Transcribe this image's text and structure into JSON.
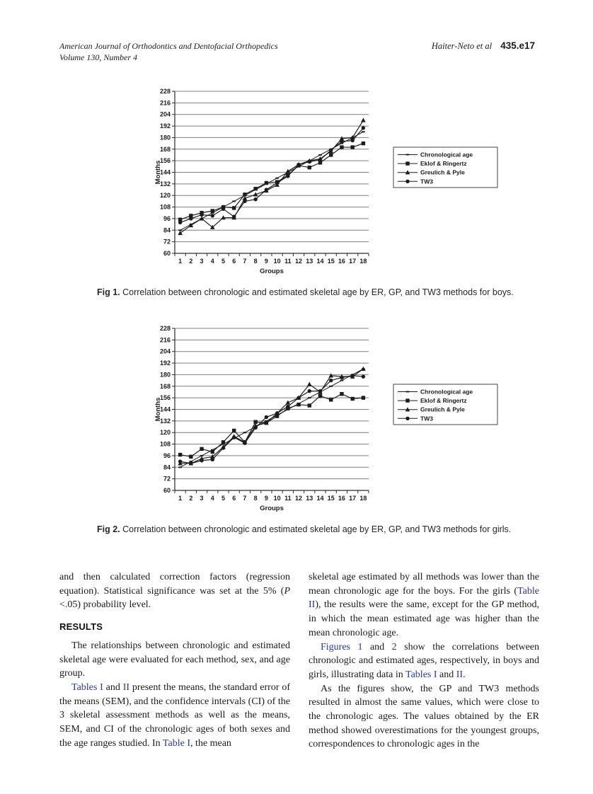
{
  "header": {
    "journal_line1": "American Journal of Orthodontics and Dentofacial Orthopedics",
    "journal_line2": "Volume 130, Number 4",
    "authors": "Haiter-Neto et al",
    "page_number": "435.e17"
  },
  "figures": [
    {
      "caption_label": "Fig 1.",
      "caption_text": " Correlation between chronologic and estimated skeletal age by ER, GP, and TW3 methods for boys."
    },
    {
      "caption_label": "Fig 2.",
      "caption_text": " Correlation between chronologic and estimated skeletal age by ER, GP, and TW3 methods for girls."
    }
  ],
  "colors": {
    "link": "#2936a5",
    "line": "#1c1c1c",
    "grid": "#7f7f7f",
    "axis": "#2a2a2a"
  },
  "chart_data": [
    {
      "type": "line",
      "title": "",
      "xlabel": "Groups",
      "ylabel": "Months",
      "x": [
        1,
        2,
        3,
        4,
        5,
        6,
        7,
        8,
        9,
        10,
        11,
        12,
        13,
        14,
        15,
        16,
        17,
        18
      ],
      "ylim": [
        60,
        228
      ],
      "ytick_step": 12,
      "grid": "horizontal",
      "legend_position": "right",
      "series": [
        {
          "name": "Chronological age",
          "marker": "dash",
          "values": [
            84,
            90,
            96,
            102,
            108,
            114,
            120,
            126,
            132,
            138,
            144,
            150,
            156,
            162,
            168,
            174,
            180,
            186
          ]
        },
        {
          "name": "Eklof & Ringertz",
          "marker": "square",
          "values": [
            95,
            99,
            102,
            104,
            108,
            107,
            121,
            127,
            133,
            134,
            141,
            151,
            149,
            154,
            162,
            170,
            170,
            174
          ]
        },
        {
          "name": "Greulich & Pyle",
          "marker": "triangle",
          "values": [
            81,
            89,
            96,
            87,
            97,
            97,
            117,
            121,
            125,
            131,
            145,
            152,
            156,
            158,
            166,
            179,
            180,
            198
          ]
        },
        {
          "name": "TW3",
          "marker": "circle",
          "values": [
            92,
            96,
            100,
            99,
            106,
            98,
            114,
            116,
            126,
            133,
            140,
            152,
            155,
            157,
            167,
            176,
            177,
            190
          ]
        }
      ]
    },
    {
      "type": "line",
      "title": "",
      "xlabel": "Groups",
      "ylabel": "Months",
      "x": [
        1,
        2,
        3,
        4,
        5,
        6,
        7,
        8,
        9,
        10,
        11,
        12,
        13,
        14,
        15,
        16,
        17,
        18
      ],
      "ylim": [
        60,
        228
      ],
      "ytick_step": 12,
      "grid": "horizontal",
      "legend_position": "right",
      "series": [
        {
          "name": "Chronological age",
          "marker": "dash",
          "values": [
            84,
            90,
            96,
            102,
            108,
            114,
            120,
            126,
            132,
            138,
            144,
            150,
            156,
            162,
            168,
            174,
            180,
            186
          ]
        },
        {
          "name": "Eklof & Ringertz",
          "marker": "square",
          "values": [
            97,
            95,
            103,
            100,
            110,
            122,
            110,
            131,
            130,
            137,
            145,
            149,
            148,
            158,
            154,
            160,
            155,
            156
          ]
        },
        {
          "name": "Greulich & Pyle",
          "marker": "triangle",
          "values": [
            88,
            88,
            93,
            95,
            105,
            116,
            110,
            127,
            130,
            140,
            151,
            156,
            170,
            162,
            179,
            178,
            178,
            186
          ]
        },
        {
          "name": "TW3",
          "marker": "circle",
          "values": [
            90,
            88,
            91,
            92,
            104,
            115,
            109,
            125,
            136,
            140,
            147,
            156,
            163,
            163,
            174,
            177,
            179,
            178
          ]
        }
      ]
    }
  ],
  "body": {
    "left_column": [
      {
        "kind": "paragraph",
        "indent": false,
        "segments": [
          {
            "text": "and then calculated correction factors (regression equation). Statistical significance was set at the 5% ("
          },
          {
            "text": "P",
            "style": "italic"
          },
          {
            "text": " <.05) probability level."
          }
        ]
      },
      {
        "kind": "heading",
        "text": "RESULTS"
      },
      {
        "kind": "paragraph",
        "indent": true,
        "segments": [
          {
            "text": "The relationships between chronologic and estimated skeletal age were evaluated for each method, sex, and age group."
          }
        ]
      },
      {
        "kind": "paragraph",
        "indent": true,
        "segments": [
          {
            "text": "Tables I",
            "style": "link"
          },
          {
            "text": " and "
          },
          {
            "text": "II",
            "style": "link"
          },
          {
            "text": " present the means, the standard error of the means (SEM), and the confidence intervals (CI) of the 3 skeletal assessment methods as well as the means, SEM, and CI of the chronologic ages of both sexes and the age ranges studied. In "
          },
          {
            "text": "Table I",
            "style": "link"
          },
          {
            "text": ", the mean"
          }
        ]
      }
    ],
    "right_column": [
      {
        "kind": "paragraph",
        "indent": false,
        "segments": [
          {
            "text": "skeletal age estimated by all methods was lower than the mean chronologic age for the boys. For the girls ("
          },
          {
            "text": "Table II",
            "style": "link"
          },
          {
            "text": "), the results were the same, except for the GP method, in which the mean estimated age was higher than the mean chronologic age."
          }
        ]
      },
      {
        "kind": "paragraph",
        "indent": true,
        "segments": [
          {
            "text": "Figures 1",
            "style": "link"
          },
          {
            "text": " and "
          },
          {
            "text": "2",
            "style": "link"
          },
          {
            "text": " show the correlations between chronologic and estimated ages, respectively, in boys and girls, illustrating data in "
          },
          {
            "text": "Tables I",
            "style": "link"
          },
          {
            "text": " and "
          },
          {
            "text": "II",
            "style": "link"
          },
          {
            "text": "."
          }
        ]
      },
      {
        "kind": "paragraph",
        "indent": true,
        "segments": [
          {
            "text": "As the figures show, the GP and TW3 methods resulted in almost the same values, which were close to the chronologic ages. The values obtained by the ER method showed overestimations for the youngest groups, correspondences to chronologic ages in the"
          }
        ]
      }
    ]
  }
}
